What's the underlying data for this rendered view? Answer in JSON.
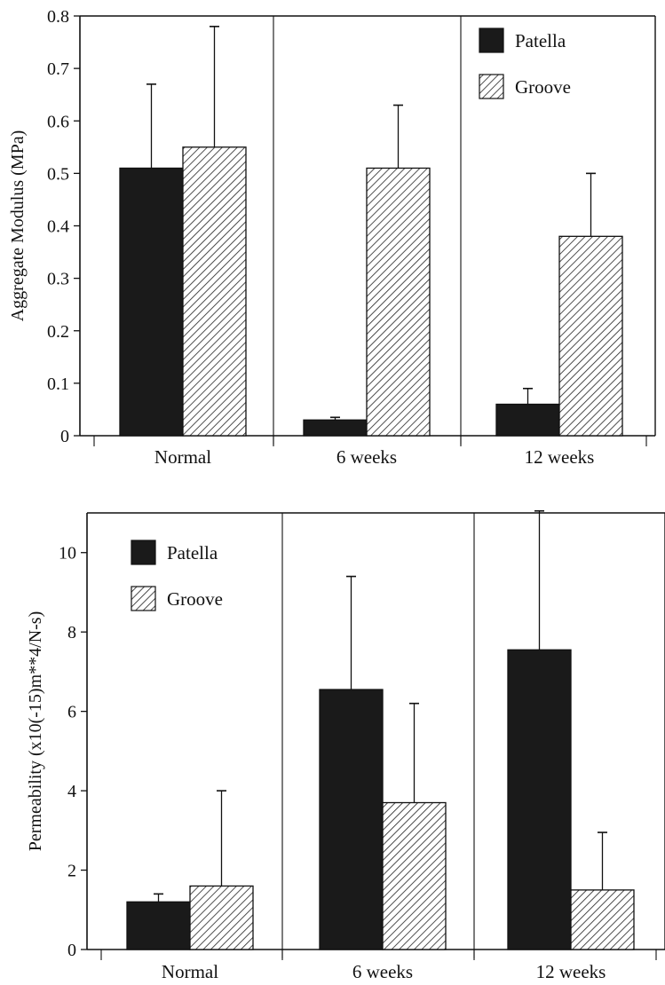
{
  "chart_data": [
    {
      "type": "bar",
      "ylabel": "Aggregate Modulus (MPa)",
      "categories": [
        "Normal",
        "6 weeks",
        "12 weeks"
      ],
      "ylim": [
        0,
        0.8
      ],
      "yticks": [
        "0",
        "0.1",
        "0.2",
        "0.3",
        "0.4",
        "0.5",
        "0.6",
        "0.7",
        "0.8"
      ],
      "legend_position": "top-right",
      "series": [
        {
          "name": "Patella",
          "values": [
            0.51,
            0.03,
            0.06
          ],
          "errors": [
            0.16,
            0.005,
            0.03
          ],
          "color": "#1a1a1a",
          "pattern": "solid"
        },
        {
          "name": "Groove",
          "values": [
            0.55,
            0.51,
            0.38
          ],
          "errors": [
            0.23,
            0.12,
            0.12
          ],
          "color": "#222222",
          "pattern": "hatch"
        }
      ]
    },
    {
      "type": "bar",
      "ylabel": "Permeability (x10(-15)m**4/N-s)",
      "categories": [
        "Normal",
        "6 weeks",
        "12 weeks"
      ],
      "ylim": [
        0,
        11
      ],
      "yticks": [
        "0",
        "2",
        "4",
        "6",
        "8",
        "10"
      ],
      "legend_position": "top-left",
      "series": [
        {
          "name": "Patella",
          "values": [
            1.2,
            6.55,
            7.55
          ],
          "errors": [
            0.2,
            2.85,
            3.5
          ],
          "color": "#1a1a1a",
          "pattern": "solid"
        },
        {
          "name": "Groove",
          "values": [
            1.6,
            3.7,
            1.5
          ],
          "errors": [
            2.4,
            2.5,
            1.45
          ],
          "color": "#222222",
          "pattern": "hatch"
        }
      ]
    }
  ]
}
